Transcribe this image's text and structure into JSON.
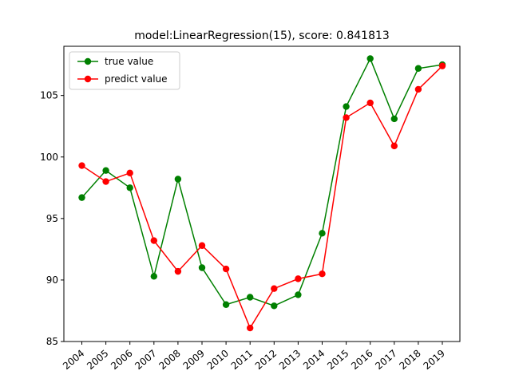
{
  "chart_data": {
    "type": "line",
    "title": "model:LinearRegression(15), score: 0.841813",
    "xlabel": "",
    "ylabel": "",
    "categories": [
      "2004",
      "2005",
      "2006",
      "2007",
      "2008",
      "2009",
      "2010",
      "2011",
      "2012",
      "2013",
      "2014",
      "2015",
      "2016",
      "2017",
      "2018",
      "2019"
    ],
    "ylim": [
      85,
      109
    ],
    "yticks": [
      85,
      90,
      95,
      100,
      105
    ],
    "grid": false,
    "legend_position": "top-left",
    "series": [
      {
        "name": "true value",
        "color": "#008000",
        "values": [
          96.7,
          98.9,
          97.5,
          90.3,
          98.2,
          91.0,
          88.0,
          88.6,
          87.9,
          88.8,
          93.8,
          104.1,
          108.0,
          103.1,
          107.2,
          107.5
        ]
      },
      {
        "name": "predict value",
        "color": "#ff0000",
        "values": [
          99.3,
          98.0,
          98.7,
          93.2,
          90.7,
          92.8,
          90.9,
          86.1,
          89.3,
          90.1,
          90.5,
          103.2,
          104.4,
          100.9,
          105.5,
          107.4
        ]
      }
    ]
  }
}
